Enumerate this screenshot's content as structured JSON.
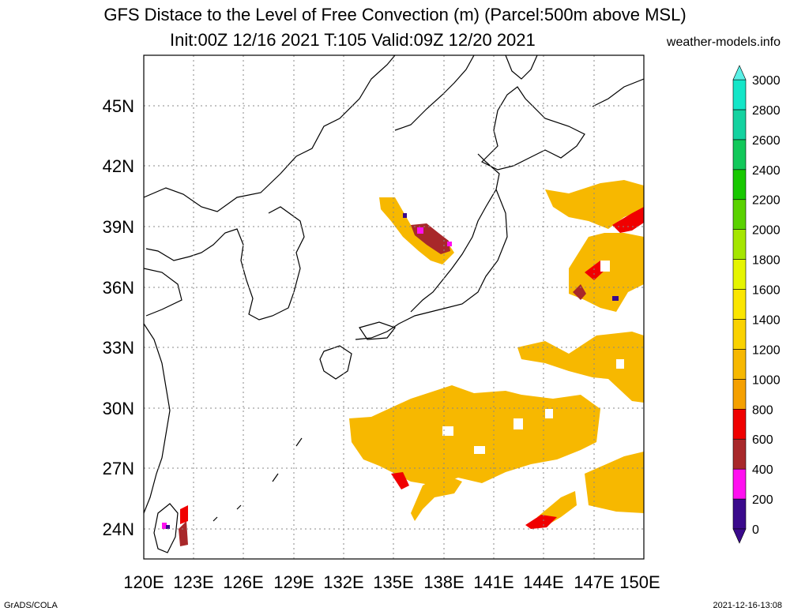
{
  "header": {
    "title_line1": "GFS Distace to the Level of Free Convection (m) (Parcel:500m above MSL)",
    "title_line2": "Init:00Z 12/16 2021 T:105 Valid:09Z 12/20 2021",
    "credit": "weather-models.info"
  },
  "footer": {
    "left": "GrADS/COLA",
    "right": "2021-12-16-13:08"
  },
  "map": {
    "lon_labels": [
      "120E",
      "123E",
      "126E",
      "129E",
      "132E",
      "135E",
      "138E",
      "141E",
      "144E",
      "147E",
      "150E"
    ],
    "lat_labels": [
      "45N",
      "42N",
      "39N",
      "36N",
      "33N",
      "30N",
      "27N",
      "24N"
    ],
    "grid": true,
    "lon_range": [
      120,
      150
    ],
    "lat_range": [
      22.5,
      47.5
    ]
  },
  "colorbar": {
    "levels": [
      "0",
      "200",
      "400",
      "600",
      "800",
      "1000",
      "1200",
      "1400",
      "1600",
      "1800",
      "2000",
      "2200",
      "2400",
      "2600",
      "2800",
      "3000"
    ],
    "colors": [
      "#3a0a8c",
      "#ff10f0",
      "#a8282a",
      "#f00000",
      "#f5a000",
      "#f7b800",
      "#fad200",
      "#fbe600",
      "#e6f500",
      "#a5e600",
      "#5ad200",
      "#18c800",
      "#12c85a",
      "#14d2a0",
      "#14e6c8",
      "#28f0e6"
    ],
    "lower_arrow_color": "#3a0a8c",
    "upper_arrow_color": "#5af0e6"
  }
}
